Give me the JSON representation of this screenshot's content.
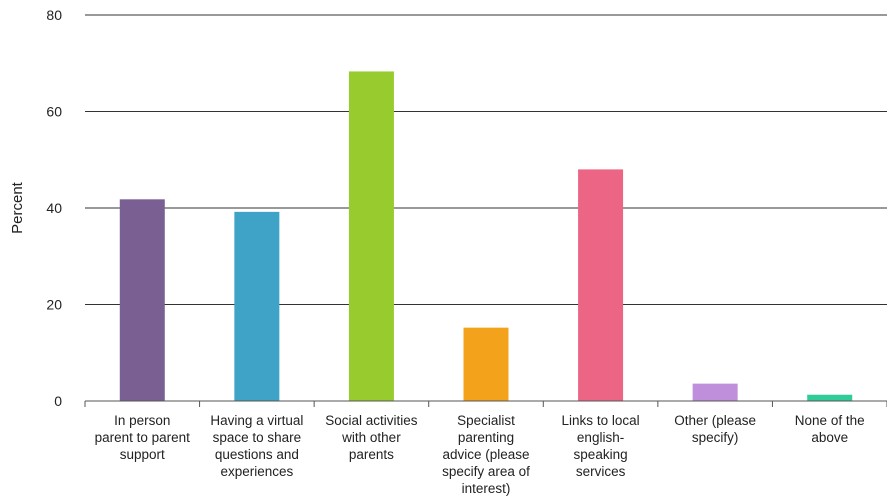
{
  "chart_data": {
    "type": "bar",
    "title": "",
    "xlabel": "",
    "ylabel": "Percent",
    "ylim": [
      0,
      80
    ],
    "yticks": [
      0,
      20,
      40,
      60,
      80
    ],
    "grid": true,
    "categories": [
      "In person parent to parent support",
      "Having a virtual space to share questions and experiences",
      "Social activities with other parents",
      "Specialist parenting advice (please specify area of interest)",
      "Links to local english-speaking services",
      "Other (please specify)",
      "None of the above"
    ],
    "category_label_lines": [
      [
        "In person",
        "parent to parent",
        "support"
      ],
      [
        "Having a virtual",
        "space to share",
        "questions and",
        "experiences"
      ],
      [
        "Social activities",
        "with other",
        "parents"
      ],
      [
        "Specialist",
        "parenting",
        "advice (please",
        "specify area of",
        "interest)"
      ],
      [
        "Links to local",
        "english-",
        "speaking",
        "services"
      ],
      [
        "Other (please",
        "specify)"
      ],
      [
        "None of the",
        "above"
      ]
    ],
    "values": [
      41.8,
      39.2,
      68.3,
      15.2,
      48.0,
      3.6,
      1.3
    ],
    "colors": [
      "#7a5f93",
      "#3ea3c7",
      "#98cb2e",
      "#f3a21c",
      "#ec6585",
      "#bf8fdc",
      "#2fcb98"
    ]
  }
}
